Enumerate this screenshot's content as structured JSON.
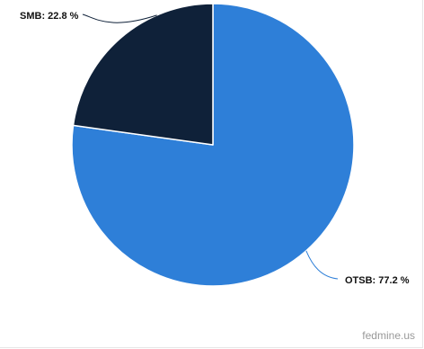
{
  "chart_data": {
    "type": "pie",
    "slices": [
      {
        "label": "OTSB",
        "value": 77.2,
        "display": "OTSB: 77.2 %",
        "color": "#2e7fd8"
      },
      {
        "label": "SMB",
        "value": 22.8,
        "display": "SMB: 22.8 %",
        "color": "#0f2139"
      }
    ],
    "start": "12 o'clock",
    "direction": "clockwise",
    "legend": "none",
    "data_labels": "outside with connector lines"
  },
  "credit": "fedmine.us"
}
